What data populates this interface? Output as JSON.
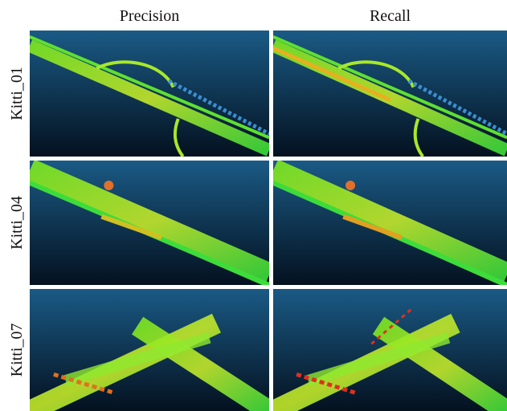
{
  "columns": [
    "Precision",
    "Recall"
  ],
  "rows": [
    "Kitti_01",
    "Kitti_04",
    "Kitti_07"
  ]
}
